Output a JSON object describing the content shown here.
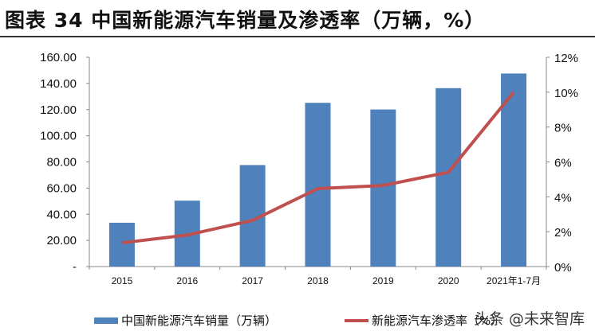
{
  "title": "图表 34 中国新能源汽车销量及渗透率（万辆，%）",
  "watermark": "头条 @未来智库",
  "chart_data": {
    "type": "bar+line",
    "categories": [
      "2015",
      "2016",
      "2017",
      "2018",
      "2019",
      "2020",
      "2021年1-7月"
    ],
    "series": [
      {
        "name": "中国新能源汽车销量（万辆）",
        "type": "bar",
        "axis": "left",
        "color": "#4f81bd",
        "values": [
          33.5,
          50.4,
          77.6,
          125.2,
          120.1,
          136.4,
          147.6
        ]
      },
      {
        "name": "新能源汽车渗透率（%）",
        "type": "line",
        "axis": "right",
        "color": "#c0504d",
        "values": [
          1.36,
          1.81,
          2.65,
          4.47,
          4.65,
          5.41,
          10.0
        ]
      }
    ],
    "left_axis": {
      "ylim": [
        0,
        160
      ],
      "ticks": [
        "-",
        "20.00",
        "40.00",
        "60.00",
        "80.00",
        "100.00",
        "120.00",
        "140.00",
        "160.00"
      ]
    },
    "right_axis": {
      "ylim": [
        0,
        12
      ],
      "ticks": [
        "0%",
        "2%",
        "4%",
        "6%",
        "8%",
        "10%",
        "12%"
      ]
    },
    "grid": false,
    "legend_position": "bottom"
  }
}
